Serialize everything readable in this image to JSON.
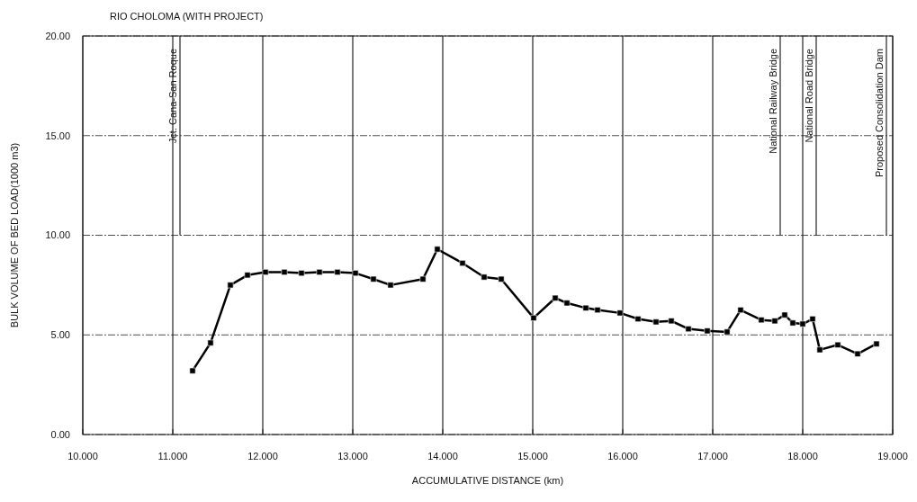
{
  "chart_data": {
    "type": "line",
    "title": "RIO CHOLOMA (WITH PROJECT)",
    "xlabel": "ACCUMULATIVE DISTANCE (km)",
    "ylabel": "BULK VOLUME OF BED LOAD(1000 m3)",
    "xlim": [
      10,
      19
    ],
    "ylim": [
      0,
      20
    ],
    "xticks": [
      {
        "value": 10,
        "label": "10.000"
      },
      {
        "value": 11,
        "label": "11.000"
      },
      {
        "value": 12,
        "label": "12.000"
      },
      {
        "value": 13,
        "label": "13.000"
      },
      {
        "value": 14,
        "label": "14.000"
      },
      {
        "value": 15,
        "label": "15.000"
      },
      {
        "value": 16,
        "label": "16.000"
      },
      {
        "value": 17,
        "label": "17.000"
      },
      {
        "value": 18,
        "label": "18.000"
      },
      {
        "value": 19,
        "label": "19.000"
      }
    ],
    "yticks": [
      {
        "value": 0,
        "label": "0.00"
      },
      {
        "value": 5,
        "label": "5.00"
      },
      {
        "value": 10,
        "label": "10.00"
      },
      {
        "value": 15,
        "label": "15.00"
      },
      {
        "value": 20,
        "label": "20.00"
      }
    ],
    "grid": true,
    "marker": "square",
    "line_style": "solid",
    "series": [
      {
        "color": "#000000",
        "x": [
          11.22,
          11.42,
          11.64,
          11.83,
          12.03,
          12.24,
          12.43,
          12.63,
          12.83,
          13.03,
          13.23,
          13.42,
          13.78,
          13.94,
          14.22,
          14.46,
          14.65,
          15.01,
          15.25,
          15.38,
          15.59,
          15.72,
          15.97,
          16.17,
          16.37,
          16.54,
          16.73,
          16.94,
          17.16,
          17.31,
          17.54,
          17.69,
          17.8,
          17.89,
          18.0,
          18.11,
          18.19,
          18.39,
          18.61,
          18.82
        ],
        "values": [
          3.2,
          4.6,
          7.5,
          8.0,
          8.15,
          8.15,
          8.1,
          8.15,
          8.15,
          8.1,
          7.8,
          7.5,
          7.8,
          9.3,
          8.6,
          7.9,
          7.8,
          5.85,
          6.85,
          6.6,
          6.35,
          6.25,
          6.1,
          5.8,
          5.65,
          5.7,
          5.3,
          5.2,
          5.15,
          6.25,
          5.75,
          5.7,
          6.0,
          5.6,
          5.55,
          5.8,
          4.25,
          4.5,
          4.05,
          4.55
        ]
      }
    ],
    "ref_lines": [
      {
        "axis": "x",
        "value": 11.08,
        "label": "Jct. Cana-San Roque"
      },
      {
        "axis": "x",
        "value": 17.75,
        "label": "National Railway Bridge"
      },
      {
        "axis": "x",
        "value": 18.15,
        "label": "National Road Bridge"
      },
      {
        "axis": "x",
        "value": 18.93,
        "label": "Proposed Consolidation Dam"
      }
    ]
  }
}
